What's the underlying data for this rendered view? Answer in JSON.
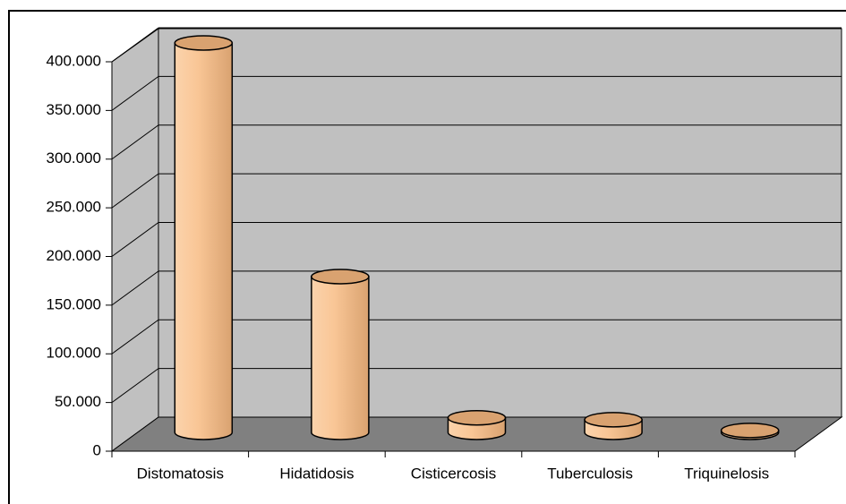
{
  "chart_data": {
    "type": "bar3d",
    "categories": [
      "Distomatosis",
      "Hidatidosis",
      "Cisticercosis",
      "Tuberculosis",
      "Triquinelosis"
    ],
    "values": [
      400000,
      160000,
      15000,
      13000,
      2000
    ],
    "color": "#f9c696",
    "ylim": [
      0,
      400000
    ],
    "yticks": [
      0,
      {
        "value": 50000,
        "label": "50.000"
      },
      {
        "value": 100000,
        "label": "100.000"
      },
      {
        "value": 150000,
        "label": "150.000"
      },
      {
        "value": 200000,
        "label": "200.000"
      },
      {
        "value": 250000,
        "label": "250.000"
      },
      {
        "value": 300000,
        "label": "300.000"
      },
      {
        "value": 350000,
        "label": "350.000"
      },
      {
        "value": 400000,
        "label": "400.000"
      }
    ],
    "grid": true
  }
}
